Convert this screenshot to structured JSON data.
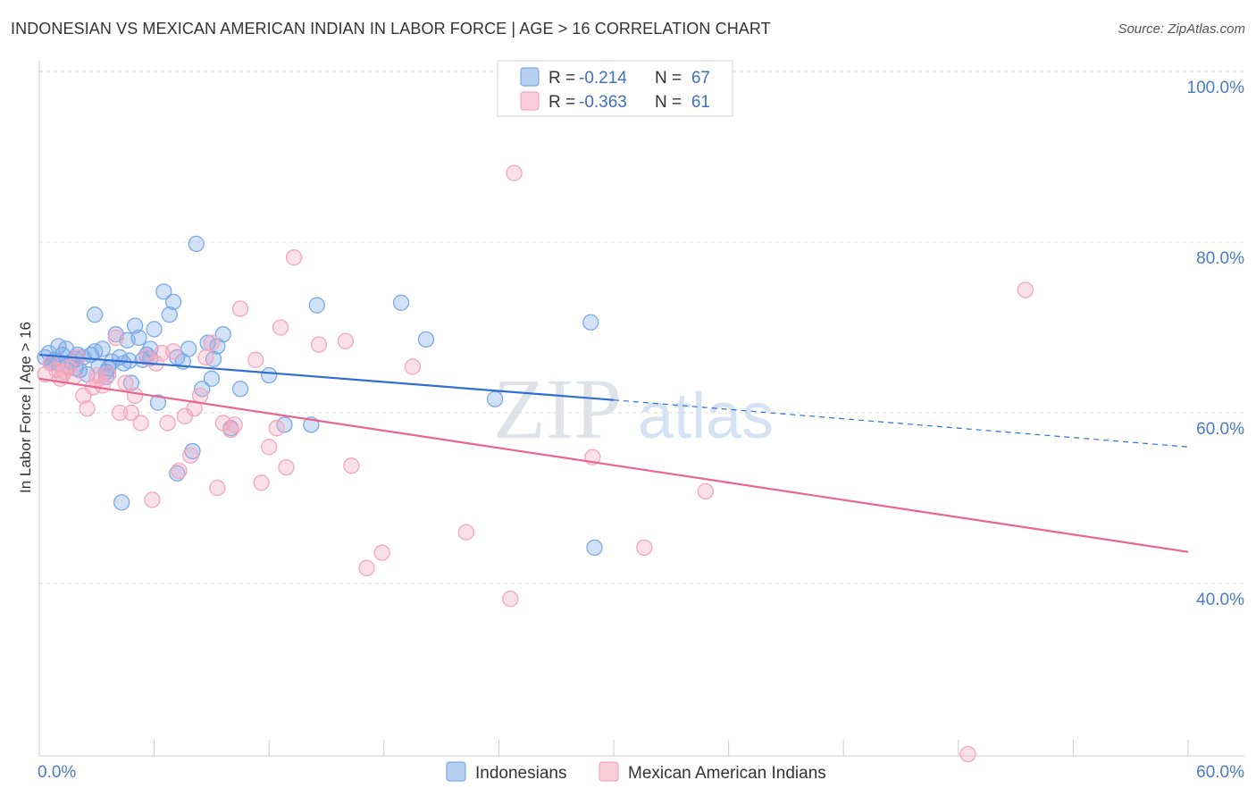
{
  "title": "INDONESIAN VS MEXICAN AMERICAN INDIAN IN LABOR FORCE | AGE > 16 CORRELATION CHART",
  "source": "Source: ZipAtlas.com",
  "watermark": {
    "zip": "ZIP",
    "atlas": "atlas"
  },
  "chart_data": {
    "type": "scatter",
    "title": "INDONESIAN VS MEXICAN AMERICAN INDIAN IN LABOR FORCE | AGE > 16 CORRELATION CHART",
    "xlabel": "",
    "ylabel": "In Labor Force | Age > 16",
    "xlim": [
      0,
      60
    ],
    "ylim": [
      20,
      104
    ],
    "x_tick_labels": [
      {
        "value": 0,
        "label": "0.0%"
      },
      {
        "value": 60,
        "label": "60.0%"
      }
    ],
    "y_tick_labels": [
      {
        "value": 100,
        "label": "100.0%"
      },
      {
        "value": 80,
        "label": "80.0%"
      },
      {
        "value": 60,
        "label": "60.0%"
      },
      {
        "value": 40,
        "label": "40.0%"
      }
    ],
    "x_minor_ticks": [
      0,
      6,
      12,
      18,
      24,
      30,
      36,
      42,
      48,
      54,
      60
    ],
    "grid": "horizontal dashed",
    "legend_placement": "top-center",
    "series": [
      {
        "name": "Indonesians",
        "color": "#7aaae8",
        "line_color": "#2f6fd0",
        "R": "-0.214",
        "N": "67",
        "trend": {
          "x0": 0,
          "y0": 66.8,
          "x1": 30,
          "y1": 61.5,
          "dashed_to_x": 60,
          "dashed_to_y": 56.0
        },
        "points": [
          [
            0.3,
            66.5
          ],
          [
            0.5,
            67.0
          ],
          [
            0.6,
            65.8
          ],
          [
            0.8,
            66.2
          ],
          [
            1.0,
            67.8
          ],
          [
            1.2,
            66.8
          ],
          [
            1.4,
            67.5
          ],
          [
            1.5,
            65.5
          ],
          [
            1.7,
            66.0
          ],
          [
            1.9,
            66.3
          ],
          [
            2.0,
            66.8
          ],
          [
            2.1,
            65.0
          ],
          [
            2.3,
            66.5
          ],
          [
            2.5,
            64.5
          ],
          [
            2.7,
            66.8
          ],
          [
            2.9,
            67.2
          ],
          [
            3.1,
            65.5
          ],
          [
            3.3,
            67.5
          ],
          [
            3.5,
            64.2
          ],
          [
            3.6,
            65.2
          ],
          [
            3.8,
            66.0
          ],
          [
            4.0,
            69.2
          ],
          [
            4.2,
            66.5
          ],
          [
            4.4,
            65.8
          ],
          [
            4.6,
            68.5
          ],
          [
            4.8,
            63.5
          ],
          [
            5.0,
            70.2
          ],
          [
            5.2,
            68.8
          ],
          [
            5.4,
            66.2
          ],
          [
            5.6,
            66.8
          ],
          [
            5.8,
            67.5
          ],
          [
            6.0,
            69.8
          ],
          [
            6.2,
            61.2
          ],
          [
            6.5,
            74.2
          ],
          [
            6.8,
            71.5
          ],
          [
            7.0,
            73.0
          ],
          [
            7.2,
            66.5
          ],
          [
            7.5,
            66.0
          ],
          [
            7.8,
            67.5
          ],
          [
            8.0,
            55.5
          ],
          [
            8.2,
            79.8
          ],
          [
            8.5,
            62.8
          ],
          [
            8.8,
            68.2
          ],
          [
            9.0,
            64.0
          ],
          [
            9.3,
            67.8
          ],
          [
            9.6,
            69.2
          ],
          [
            10.0,
            58.2
          ],
          [
            10.5,
            62.8
          ],
          [
            12.0,
            64.4
          ],
          [
            12.8,
            58.6
          ],
          [
            14.2,
            58.6
          ],
          [
            14.5,
            72.6
          ],
          [
            18.9,
            72.9
          ],
          [
            20.2,
            68.6
          ],
          [
            23.8,
            61.6
          ],
          [
            28.8,
            70.6
          ],
          [
            29.0,
            44.2
          ],
          [
            4.3,
            49.5
          ],
          [
            1.0,
            65.8
          ],
          [
            2.9,
            71.5
          ],
          [
            3.5,
            64.8
          ],
          [
            4.7,
            66.1
          ],
          [
            0.7,
            66.0
          ],
          [
            1.9,
            65.2
          ],
          [
            5.8,
            66.4
          ],
          [
            7.2,
            52.9
          ],
          [
            9.1,
            66.3
          ]
        ]
      },
      {
        "name": "Mexican American Indians",
        "color": "#f4a6bd",
        "line_color": "#e8668f",
        "R": "-0.363",
        "N": "61",
        "trend": {
          "x0": 0,
          "y0": 64.0,
          "x1": 60,
          "y1": 43.7
        },
        "points": [
          [
            0.3,
            64.5
          ],
          [
            0.6,
            65.8
          ],
          [
            0.9,
            65.0
          ],
          [
            1.1,
            64.0
          ],
          [
            1.3,
            64.8
          ],
          [
            1.5,
            65.3
          ],
          [
            1.8,
            64.2
          ],
          [
            2.0,
            66.5
          ],
          [
            2.3,
            62.0
          ],
          [
            2.5,
            60.5
          ],
          [
            2.8,
            63.0
          ],
          [
            3.0,
            64.4
          ],
          [
            3.3,
            63.2
          ],
          [
            3.6,
            64.5
          ],
          [
            4.0,
            68.8
          ],
          [
            4.2,
            60.0
          ],
          [
            4.5,
            63.5
          ],
          [
            4.8,
            60.0
          ],
          [
            5.0,
            62.0
          ],
          [
            5.3,
            58.8
          ],
          [
            5.6,
            66.5
          ],
          [
            5.9,
            49.8
          ],
          [
            6.1,
            65.8
          ],
          [
            6.4,
            67.0
          ],
          [
            6.7,
            58.8
          ],
          [
            7.0,
            67.2
          ],
          [
            7.3,
            53.2
          ],
          [
            7.6,
            59.6
          ],
          [
            7.9,
            55.0
          ],
          [
            8.1,
            60.5
          ],
          [
            8.4,
            62.0
          ],
          [
            8.7,
            66.5
          ],
          [
            9.0,
            68.2
          ],
          [
            9.3,
            51.2
          ],
          [
            9.6,
            58.8
          ],
          [
            10.0,
            58.0
          ],
          [
            10.2,
            58.6
          ],
          [
            10.5,
            72.2
          ],
          [
            11.3,
            66.2
          ],
          [
            11.6,
            51.8
          ],
          [
            12.0,
            56.0
          ],
          [
            12.4,
            58.2
          ],
          [
            12.6,
            70.0
          ],
          [
            12.9,
            53.6
          ],
          [
            13.3,
            78.2
          ],
          [
            14.6,
            68.0
          ],
          [
            16.0,
            68.4
          ],
          [
            16.3,
            53.8
          ],
          [
            17.1,
            41.8
          ],
          [
            17.9,
            43.6
          ],
          [
            19.5,
            65.4
          ],
          [
            22.3,
            46.0
          ],
          [
            24.6,
            38.2
          ],
          [
            24.8,
            88.1
          ],
          [
            28.9,
            54.8
          ],
          [
            31.6,
            44.2
          ],
          [
            34.8,
            50.8
          ],
          [
            48.5,
            20.0
          ],
          [
            51.5,
            74.4
          ],
          [
            1.2,
            64.4
          ],
          [
            3.0,
            63.8
          ]
        ]
      }
    ]
  },
  "legend": {
    "r_label": "R =",
    "n_label": "N ="
  }
}
